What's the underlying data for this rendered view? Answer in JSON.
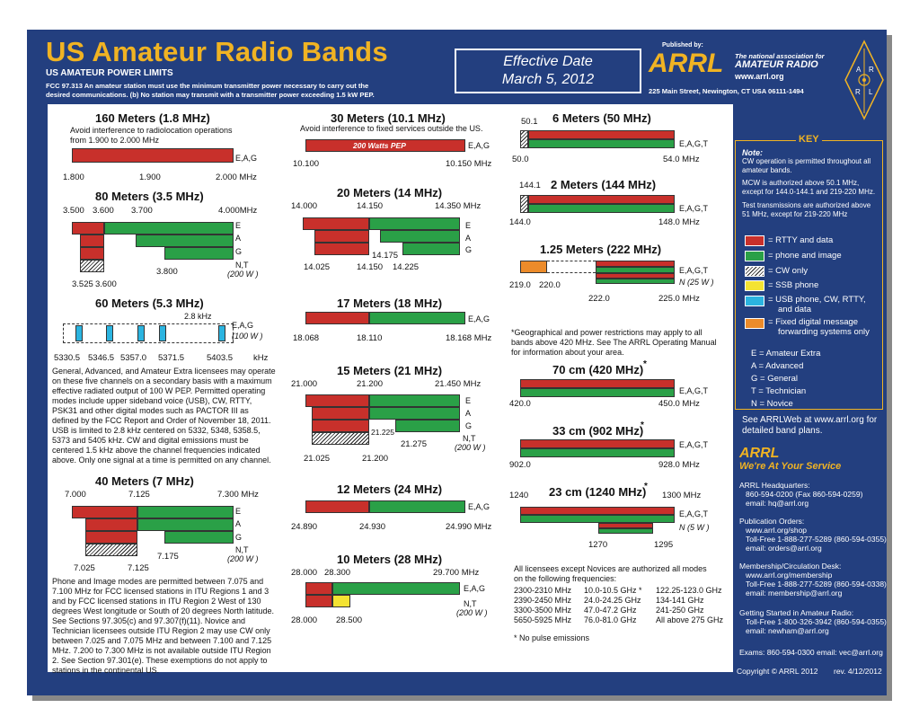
{
  "header": {
    "title": "US Amateur Radio Bands",
    "power_limits_heading": "US AMATEUR POWER LIMITS",
    "fcc_line1": "FCC 97.313  An amateur station must use the minimum transmitter power necessary to carry out the",
    "fcc_line2": "desired communications.  (b) No station may transmit with a transmitter power exceeding 1.5 kW PEP.",
    "effective_label": "Effective Date",
    "effective_date": "March 5, 2012",
    "published_by": "Published by:",
    "arrl": "ARRL",
    "assoc1": "The national association for",
    "assoc2": "AMATEUR RADIO",
    "website": "www.arrl.org",
    "address": "225 Main Street, Newington, CT  USA  06111-1494",
    "logo_letters": [
      "A",
      "R",
      "R",
      "L"
    ]
  },
  "colors": {
    "rtty": "#c8302b",
    "phone": "#2aa047",
    "ssb": "#f4e333",
    "usb": "#2bb4e0",
    "fixed": "#ec8b2a",
    "frame": "#233f7f",
    "gold": "#f0b323"
  },
  "bands": {
    "m160": {
      "title": "160 Meters (1.8 MHz)",
      "note": "Avoid interference to radiolocation operations from 1.900 to 2.000 MHz",
      "lic": "E,A,G",
      "ticks": [
        "1.800",
        "1.900",
        "2.000  MHz"
      ]
    },
    "m80": {
      "title": "80 Meters (3.5 MHz)",
      "ticks_top": [
        "3.500",
        "3.600",
        "3.700",
        "4.000MHz"
      ],
      "lics": [
        "E",
        "A",
        "G",
        "N,T"
      ],
      "power": "(200 W )",
      "ticks_bottom": [
        "3.525",
        "3.600",
        "3.800"
      ]
    },
    "m60": {
      "title": "60 Meters (5.3 MHz)",
      "bw": "2.8 kHz",
      "lic": "E,A,G",
      "power": "(100 W )",
      "ticks": [
        "5330.5",
        "5346.5",
        "5357.0",
        "5371.5",
        "5403.5",
        "kHz"
      ],
      "note": "General, Advanced, and Amateur Extra licensees may operate on these five channels on a secondary basis with a maximum effective radiated output of 100 W PEP. Permitted operating modes include upper sideband voice (USB), CW, RTTY, PSK31 and other digital modes such as PACTOR III as defined by the FCC Report and Order of November 18, 2011. USB is limited to 2.8 kHz centered on 5332, 5348, 5358.5, 5373 and 5405 kHz. CW and digital emissions must be centered 1.5 kHz above the channel frequencies indicated above. Only one signal at a time is permitted on any channel."
    },
    "m40": {
      "title": "40 Meters (7 MHz)",
      "ticks_top": [
        "7.000",
        "7.125",
        "7.300  MHz"
      ],
      "lics": [
        "E",
        "A",
        "G",
        "N,T"
      ],
      "power": "(200 W )",
      "ticks_bottom": [
        "7.025",
        "7.125",
        "7.175"
      ],
      "note": "Phone and Image modes are permitted between 7.075 and 7.100 MHz for FCC licensed stations in ITU Regions 1 and 3 and by FCC licensed stations in ITU Region 2 West of 130 degrees West longitude or South of 20 degrees North latitude. See Sections 97.305(c) and 97.307(f)(11). Novice and Technician  licensees outside ITU Region 2 may use CW only between 7.025 and 7.075 MHz and between 7.100 and 7.125 MHz. 7.200 to 7.300 MHz is not available outside ITU Region 2. See Section 97.301(e). These exemptions do not apply to stations in the continental US."
    },
    "m30": {
      "title": "30 Meters (10.1 MHz)",
      "note": "Avoid interference to fixed services outside the US.",
      "bar_label": "200 Watts PEP",
      "lic": "E,A,G",
      "ticks": [
        "10.100",
        "10.150 MHz"
      ]
    },
    "m20": {
      "title": "20 Meters (14 MHz)",
      "ticks_top": [
        "14.000",
        "14.150",
        "14.350 MHz"
      ],
      "lics": [
        "E",
        "A",
        "G"
      ],
      "ticks_bottom": [
        "14.025",
        "14.150",
        "14.175",
        "14.225"
      ]
    },
    "m17": {
      "title": "17 Meters (18 MHz)",
      "lic": "E,A,G",
      "ticks": [
        "18.068",
        "18.110",
        "18.168 MHz"
      ]
    },
    "m15": {
      "title": "15 Meters (21 MHz)",
      "ticks_top": [
        "21.000",
        "21.200",
        "21.450 MHz"
      ],
      "lics": [
        "E",
        "A",
        "G",
        "N,T"
      ],
      "power": "(200 W )",
      "ticks_bottom": [
        "21.225",
        "21.275",
        "21.025",
        "21.200"
      ]
    },
    "m12": {
      "title": "12 Meters (24 MHz)",
      "lic": "E,A,G",
      "ticks": [
        "24.890",
        "24.930",
        "24.990 MHz"
      ]
    },
    "m10": {
      "title": "10 Meters (28 MHz)",
      "ticks_top": [
        "28.000",
        "28.300",
        "29.700 MHz"
      ],
      "lics": [
        "E,A,G",
        "N,T"
      ],
      "power": "(200 W )",
      "ticks_bottom": [
        "28.000",
        "28.500"
      ]
    },
    "m6": {
      "title": "6 Meters (50 MHz)",
      "top": "50.1",
      "lic": "E,A,G,T",
      "ticks": [
        "50.0",
        "54.0  MHz"
      ]
    },
    "m2": {
      "title": "2 Meters (144 MHz)",
      "top": "144.1",
      "lic": "E,A,G,T",
      "ticks": [
        "144.0",
        "148.0  MHz"
      ]
    },
    "m125": {
      "title": "1.25 Meters (222 MHz)",
      "lic1": "E,A,G,T",
      "lic2": "N  (25 W )",
      "ticks_left": [
        "219.0",
        "220.0"
      ],
      "ticks_right": [
        "222.0",
        "225.0  MHz"
      ]
    },
    "geo_note": "*Geographical and power restrictions may apply to all bands above 420 MHz. See The ARRL Operating Manual for information about your area.",
    "cm70": {
      "title": "70 cm (420 MHz)",
      "star": "*",
      "lic": "E,A,G,T",
      "ticks": [
        "420.0",
        "450.0  MHz"
      ]
    },
    "cm33": {
      "title": "33 cm (902 MHz)",
      "star": "*",
      "lic": "E,A,G,T",
      "ticks": [
        "902.0",
        "928.0  MHz"
      ]
    },
    "cm23": {
      "title": "23 cm (1240 MHz)",
      "star": "*",
      "tick_left": "1240",
      "tick_right": "1300  MHz",
      "lic1": "E,A,G,T",
      "lic2": "N  (5 W )",
      "ticks_bottom": [
        "1270",
        "1295"
      ]
    },
    "all_modes": {
      "intro1": "All licensees except Novices are authorized all modes",
      "intro2": "on the following frequencies:",
      "rows": [
        [
          "2300-2310 MHz",
          "10.0-10.5 GHz *",
          "122.25-123.0 GHz"
        ],
        [
          "2390-2450 MHz",
          "24.0-24.25 GHz",
          "134-141 GHz"
        ],
        [
          "3300-3500 MHz",
          "47.0-47.2 GHz",
          "241-250 GHz"
        ],
        [
          "5650-5925 MHz",
          "76.0-81.0 GHz",
          "All above 275 GHz"
        ]
      ],
      "footnote": "* No pulse emissions"
    }
  },
  "key": {
    "title": "KEY",
    "note_head": "Note:",
    "note1": "CW operation is permitted throughout all amateur bands.",
    "note2": "MCW is authorized above 50.1 MHz, except for 144.0-144.1 and 219-220 MHz.",
    "note3": "Test transmissions are authorized above 51 MHz, except for 219-220 MHz",
    "legend": [
      "= RTTY and data",
      "= phone and image",
      "= CW only",
      "= SSB phone",
      "= USB phone, CW, RTTY,",
      "and data",
      "= Fixed digital message",
      "forwarding systems only"
    ],
    "classes": [
      "E = Amateur Extra",
      "A = Advanced",
      "G = General",
      "T = Technician",
      "N = Novice"
    ]
  },
  "sidebar": {
    "see1": "See ARRLWeb at www.arrl.org for",
    "see2": "detailed band plans.",
    "arrl": "ARRL",
    "service": "We're At Your Service",
    "hq": [
      "ARRL Headquarters:",
      "860-594-0200  (Fax 860-594-0259)",
      "email:  hq@arrl.org"
    ],
    "pub": [
      "Publication Orders:",
      "www.arrl.org/shop",
      "Toll-Free 1-888-277-5289 (860-594-0355)",
      "email: orders@arrl.org"
    ],
    "member": [
      "Membership/Circulation Desk:",
      "www.arrl.org/membership",
      "Toll-Free 1-888-277-5289 (860-594-0338)",
      "email: membership@arrl.org"
    ],
    "start": [
      "Getting Started in Amateur Radio:",
      "Toll-Free 1-800-326-3942 (860-594-0355)",
      "email: newham@arrl.org"
    ],
    "exams": "Exams:  860-594-0300   email: vec@arrl.org",
    "copyright": "Copyright © ARRL 2012",
    "rev": "rev. 4/12/2012"
  }
}
